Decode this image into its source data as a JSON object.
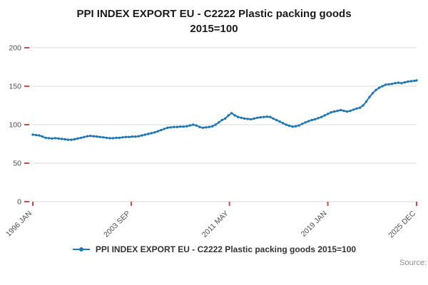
{
  "title": {
    "line1": "PPI INDEX EXPORT EU - C2222 Plastic packing goods",
    "line2": "2015=100"
  },
  "legend": {
    "label": "PPI INDEX EXPORT EU - C2222 Plastic packing goods 2015=100"
  },
  "source_label": "Source:",
  "chart_data": {
    "type": "line",
    "title": "PPI INDEX EXPORT EU - C2222 Plastic packing goods 2015=100",
    "xlabel": "",
    "ylabel": "",
    "xlim": [
      1996.0,
      2025.92
    ],
    "ylim": [
      0,
      200
    ],
    "grid": true,
    "legend_position": "bottom",
    "line_color": "#1f77b4",
    "grid_color": "#d9d9d9",
    "axis_text_color": "#4d4d4d",
    "tick_color": "#c0504d",
    "y_ticks": [
      0,
      50,
      100,
      150,
      200
    ],
    "x_ticks": [
      {
        "pos": 1996.0,
        "label": "1996 JAN"
      },
      {
        "pos": 2003.67,
        "label": "2003 SEP"
      },
      {
        "pos": 2011.33,
        "label": "2011 MAY"
      },
      {
        "pos": 2019.0,
        "label": "2019 JAN"
      },
      {
        "pos": 2025.92,
        "label": "2025 DEC"
      }
    ],
    "series": [
      {
        "name": "PPI INDEX EXPORT EU - C2222 Plastic packing goods 2015=100",
        "points": [
          [
            1996.0,
            87
          ],
          [
            1996.25,
            86.5
          ],
          [
            1996.5,
            86
          ],
          [
            1996.75,
            84.5
          ],
          [
            1997.0,
            83
          ],
          [
            1997.25,
            82.5
          ],
          [
            1997.5,
            82
          ],
          [
            1997.75,
            82.5
          ],
          [
            1998.0,
            82
          ],
          [
            1998.25,
            81.5
          ],
          [
            1998.5,
            81
          ],
          [
            1998.75,
            80.5
          ],
          [
            1999.0,
            80.5
          ],
          [
            1999.25,
            81
          ],
          [
            1999.5,
            82
          ],
          [
            1999.75,
            83
          ],
          [
            2000.0,
            84
          ],
          [
            2000.25,
            85
          ],
          [
            2000.5,
            85.5
          ],
          [
            2000.75,
            85
          ],
          [
            2001.0,
            84.5
          ],
          [
            2001.25,
            84
          ],
          [
            2001.5,
            83.5
          ],
          [
            2001.75,
            83
          ],
          [
            2002.0,
            82.5
          ],
          [
            2002.25,
            82.5
          ],
          [
            2002.5,
            83
          ],
          [
            2002.75,
            83
          ],
          [
            2003.0,
            83.5
          ],
          [
            2003.25,
            84
          ],
          [
            2003.5,
            84
          ],
          [
            2003.75,
            84.5
          ],
          [
            2004.0,
            84.5
          ],
          [
            2004.25,
            85
          ],
          [
            2004.5,
            86
          ],
          [
            2004.75,
            87
          ],
          [
            2005.0,
            88
          ],
          [
            2005.25,
            89
          ],
          [
            2005.5,
            90
          ],
          [
            2005.75,
            91.5
          ],
          [
            2006.0,
            93
          ],
          [
            2006.25,
            94.5
          ],
          [
            2006.5,
            96
          ],
          [
            2006.75,
            96.5
          ],
          [
            2007.0,
            97
          ],
          [
            2007.25,
            97
          ],
          [
            2007.5,
            97.5
          ],
          [
            2007.75,
            97.5
          ],
          [
            2008.0,
            98
          ],
          [
            2008.25,
            99
          ],
          [
            2008.5,
            100
          ],
          [
            2008.75,
            99
          ],
          [
            2009.0,
            97
          ],
          [
            2009.25,
            96
          ],
          [
            2009.5,
            96.5
          ],
          [
            2009.75,
            97
          ],
          [
            2010.0,
            98
          ],
          [
            2010.25,
            100
          ],
          [
            2010.5,
            103
          ],
          [
            2010.75,
            106
          ],
          [
            2011.0,
            108
          ],
          [
            2011.25,
            112
          ],
          [
            2011.5,
            115
          ],
          [
            2011.75,
            112
          ],
          [
            2012.0,
            110
          ],
          [
            2012.25,
            109
          ],
          [
            2012.5,
            108
          ],
          [
            2012.75,
            107.5
          ],
          [
            2013.0,
            107
          ],
          [
            2013.25,
            108
          ],
          [
            2013.5,
            109
          ],
          [
            2013.75,
            109.5
          ],
          [
            2014.0,
            110
          ],
          [
            2014.25,
            110.5
          ],
          [
            2014.5,
            110
          ],
          [
            2014.75,
            108
          ],
          [
            2015.0,
            106
          ],
          [
            2015.25,
            104
          ],
          [
            2015.5,
            102
          ],
          [
            2015.75,
            100
          ],
          [
            2016.0,
            98.5
          ],
          [
            2016.25,
            97.5
          ],
          [
            2016.5,
            98
          ],
          [
            2016.75,
            99
          ],
          [
            2017.0,
            101
          ],
          [
            2017.25,
            103
          ],
          [
            2017.5,
            104.5
          ],
          [
            2017.75,
            106
          ],
          [
            2018.0,
            107
          ],
          [
            2018.25,
            108.5
          ],
          [
            2018.5,
            110
          ],
          [
            2018.75,
            112
          ],
          [
            2019.0,
            114
          ],
          [
            2019.25,
            116
          ],
          [
            2019.5,
            117
          ],
          [
            2019.75,
            118
          ],
          [
            2020.0,
            119
          ],
          [
            2020.25,
            118
          ],
          [
            2020.5,
            117
          ],
          [
            2020.75,
            118
          ],
          [
            2021.0,
            119.5
          ],
          [
            2021.25,
            121
          ],
          [
            2021.5,
            122
          ],
          [
            2021.75,
            125
          ],
          [
            2022.0,
            130
          ],
          [
            2022.25,
            136
          ],
          [
            2022.5,
            141
          ],
          [
            2022.75,
            145
          ],
          [
            2023.0,
            148
          ],
          [
            2023.25,
            150
          ],
          [
            2023.5,
            152
          ],
          [
            2023.75,
            152.5
          ],
          [
            2024.0,
            153
          ],
          [
            2024.25,
            154
          ],
          [
            2024.5,
            154.5
          ],
          [
            2024.75,
            154
          ],
          [
            2025.0,
            155
          ],
          [
            2025.25,
            156
          ],
          [
            2025.5,
            156.5
          ],
          [
            2025.75,
            157
          ],
          [
            2025.92,
            157.5
          ]
        ]
      }
    ]
  }
}
